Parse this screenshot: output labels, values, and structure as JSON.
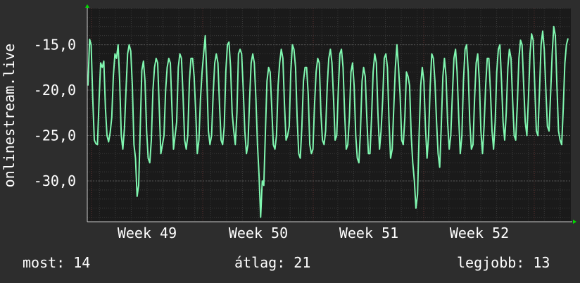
{
  "chart_data": {
    "type": "line",
    "ylabel": "onlinestream.live",
    "ylim": [
      -34.5,
      -11.0
    ],
    "y_ticks": [
      -15.0,
      -20.0,
      -25.0,
      -30.0
    ],
    "y_tick_labels": [
      "-15,0",
      "-20,0",
      "-25,0",
      "-30,0"
    ],
    "x_ticks": [
      "Week 49",
      "Week 50",
      "Week 51",
      "Week 52"
    ],
    "grid": true,
    "colors": {
      "background": "#2d2d2d",
      "plot": "#1a1a1a",
      "line": "#80f7b0",
      "arrow": "#00dd00",
      "grid": "#3a3a3a",
      "week_grid": "#5a3030"
    },
    "series": [
      {
        "values": [
          -19.5,
          -14.4,
          -15.0,
          -21.0,
          -25.5,
          -25.9,
          -26.0,
          -21.0,
          -17.0,
          -17.5,
          -16.8,
          -22.0,
          -25.0,
          -25.7,
          -24.7,
          -23.0,
          -18.5,
          -16.0,
          -16.5,
          -15.0,
          -19.0,
          -25.0,
          -26.5,
          -24.2,
          -20.0,
          -16.0,
          -15.0,
          -15.7,
          -19.5,
          -26.0,
          -27.5,
          -31.7,
          -30.5,
          -24.0,
          -17.8,
          -16.8,
          -19.0,
          -24.5,
          -27.5,
          -28.0,
          -25.5,
          -20.0,
          -17.5,
          -16.5,
          -17.0,
          -22.0,
          -27.0,
          -26.0,
          -25.0,
          -20.0,
          -17.5,
          -16.5,
          -17.0,
          -22.0,
          -26.5,
          -25.0,
          -23.5,
          -17.5,
          -16.0,
          -16.5,
          -20.5,
          -25.5,
          -26.5,
          -25.0,
          -19.0,
          -16.5,
          -16.5,
          -18.5,
          -22.5,
          -27.0,
          -25.5,
          -21.0,
          -18.0,
          -16.0,
          -14.0,
          -18.5,
          -24.5,
          -26.0,
          -25.0,
          -20.5,
          -17.0,
          -16.0,
          -17.0,
          -21.5,
          -25.5,
          -26.0,
          -24.0,
          -18.0,
          -15.0,
          -14.7,
          -17.5,
          -22.5,
          -24.5,
          -26.0,
          -22.5,
          -16.0,
          -15.5,
          -16.0,
          -20.0,
          -24.5,
          -27.0,
          -26.0,
          -21.0,
          -17.0,
          -16.0,
          -17.0,
          -21.0,
          -26.0,
          -29.5,
          -34.0,
          -30.0,
          -30.5,
          -24.5,
          -19.0,
          -17.5,
          -18.0,
          -22.0,
          -26.0,
          -26.5,
          -25.0,
          -19.5,
          -17.0,
          -15.5,
          -16.5,
          -21.5,
          -25.5,
          -25.0,
          -24.0,
          -18.0,
          -15.0,
          -15.5,
          -17.5,
          -23.0,
          -27.0,
          -27.5,
          -24.0,
          -19.0,
          -17.5,
          -17.5,
          -20.5,
          -26.0,
          -27.0,
          -26.5,
          -21.5,
          -18.0,
          -16.5,
          -17.0,
          -22.5,
          -25.5,
          -26.0,
          -24.5,
          -19.5,
          -16.5,
          -15.5,
          -17.0,
          -21.0,
          -25.5,
          -25.0,
          -20.0,
          -16.0,
          -15.5,
          -17.5,
          -22.5,
          -26.5,
          -26.0,
          -23.0,
          -18.0,
          -17.0,
          -19.5,
          -25.0,
          -27.5,
          -28.0,
          -24.5,
          -19.0,
          -17.5,
          -18.5,
          -23.0,
          -27.0,
          -27.0,
          -23.0,
          -18.0,
          -16.0,
          -17.0,
          -22.5,
          -26.5,
          -24.5,
          -21.0,
          -16.5,
          -16.0,
          -17.5,
          -23.5,
          -27.5,
          -26.5,
          -22.0,
          -17.5,
          -15.0,
          -17.5,
          -20.5,
          -25.5,
          -26.0,
          -23.0,
          -18.0,
          -18.5,
          -19.5,
          -25.0,
          -28.0,
          -30.0,
          -33.0,
          -31.5,
          -25.0,
          -19.5,
          -17.5,
          -19.0,
          -24.0,
          -27.5,
          -25.0,
          -19.5,
          -16.0,
          -16.5,
          -19.0,
          -23.5,
          -27.0,
          -28.5,
          -24.0,
          -18.5,
          -16.5,
          -18.5,
          -23.5,
          -26.5,
          -25.0,
          -20.5,
          -16.5,
          -15.5,
          -18.0,
          -23.0,
          -27.0,
          -25.0,
          -19.0,
          -15.5,
          -15.0,
          -18.0,
          -23.5,
          -26.5,
          -26.0,
          -21.0,
          -17.0,
          -16.0,
          -19.0,
          -24.5,
          -27.0,
          -24.0,
          -19.5,
          -16.5,
          -16.5,
          -20.0,
          -24.5,
          -26.5,
          -23.5,
          -18.0,
          -15.5,
          -15.0,
          -19.0,
          -23.5,
          -25.5,
          -22.5,
          -17.5,
          -15.5,
          -16.5,
          -21.0,
          -25.0,
          -25.5,
          -21.5,
          -16.5,
          -14.5,
          -15.0,
          -19.5,
          -23.5,
          -25.0,
          -21.0,
          -16.0,
          -13.8,
          -14.5,
          -19.5,
          -24.5,
          -25.0,
          -20.0,
          -15.0,
          -13.5,
          -15.5,
          -20.0,
          -24.0,
          -24.5,
          -20.5,
          -16.0,
          -13.0,
          -14.0,
          -19.5,
          -24.5,
          -25.5,
          -26.0,
          -22.0,
          -17.0,
          -15.0,
          -14.3
        ]
      }
    ]
  },
  "stats": {
    "now": "most: 14",
    "avg": "átlag: 21",
    "best": "legjobb: 13"
  }
}
